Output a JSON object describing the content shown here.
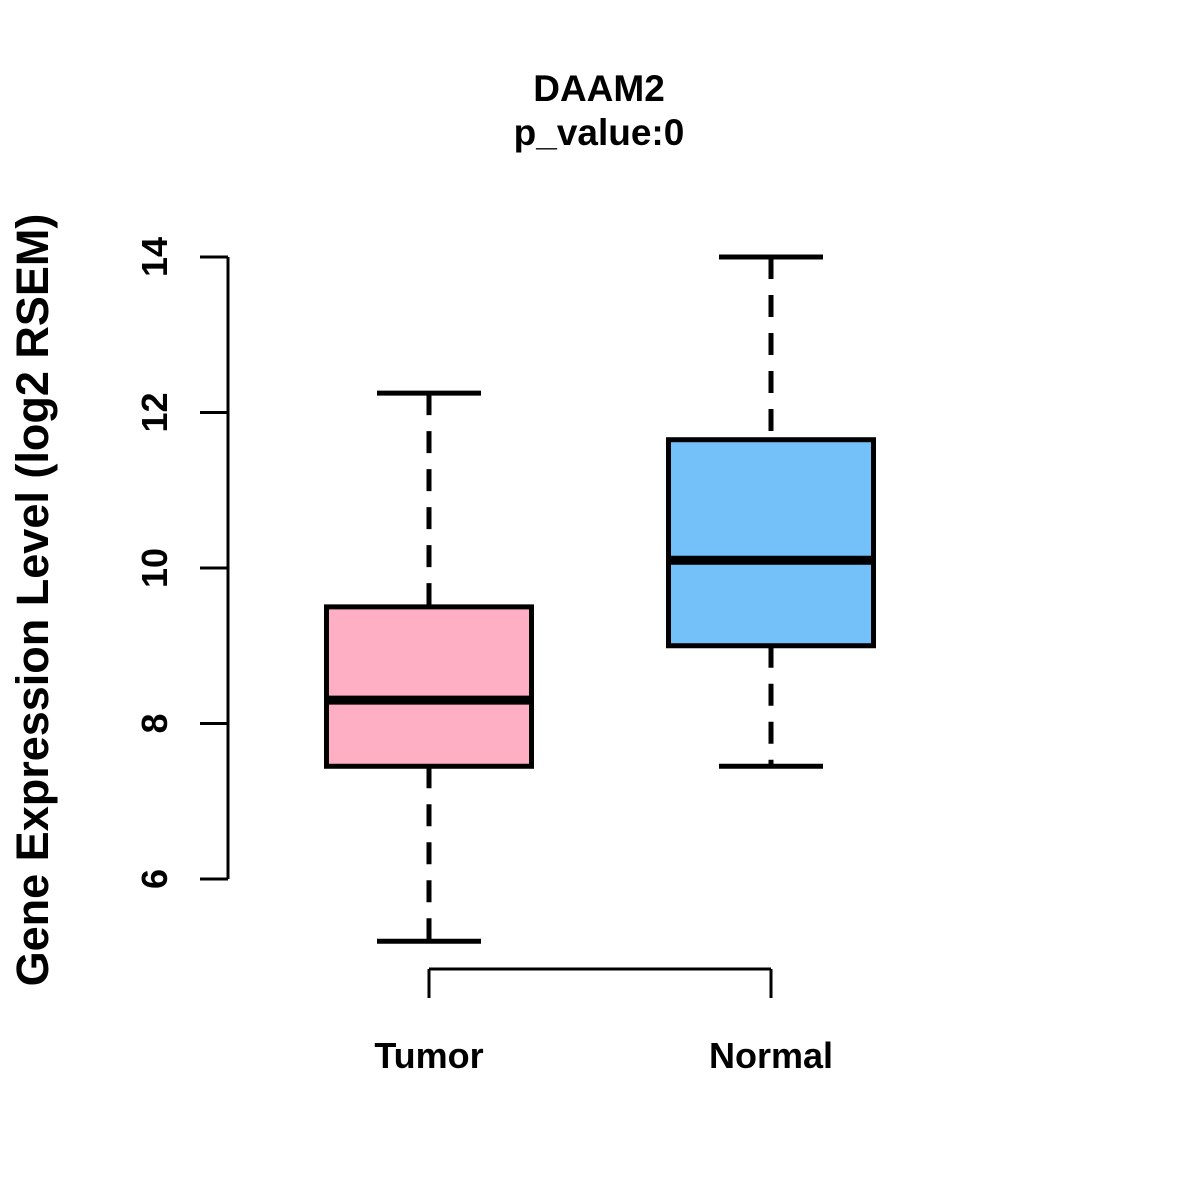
{
  "figure": {
    "background_color": "#FFFFFF",
    "foreground_color": "#000000"
  },
  "chart_data": {
    "type": "boxplot",
    "title": "DAAM2",
    "subtitle": "p_value:0",
    "ylabel": "Gene Expression Level (log2 RSEM)",
    "xlabel": "",
    "categories": [
      "Tumor",
      "Normal"
    ],
    "yticks": [
      6,
      8,
      10,
      12,
      14
    ],
    "ylim": [
      5.0,
      14.2
    ],
    "grid": false,
    "legend": false,
    "whisker_style": "dashed",
    "series": [
      {
        "name": "Tumor",
        "fill_color": "#FFAFC3",
        "stroke_color": "#000000",
        "stats": {
          "whisker_low": 5.2,
          "q1": 7.45,
          "median": 8.3,
          "q3": 9.5,
          "whisker_high": 12.25
        },
        "outliers": []
      },
      {
        "name": "Normal",
        "fill_color": "#74C0F8",
        "stroke_color": "#000000",
        "stats": {
          "whisker_low": 7.45,
          "q1": 9.0,
          "median": 10.1,
          "q3": 11.65,
          "whisker_high": 14.0
        },
        "outliers": []
      }
    ]
  }
}
